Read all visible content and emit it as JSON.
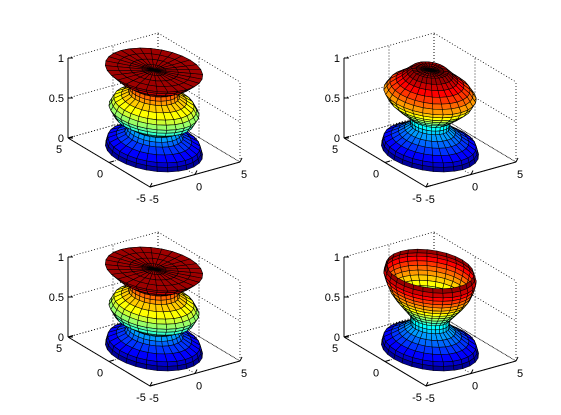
{
  "chart_data": [
    {
      "type": "surface",
      "colormap": "jet",
      "zlim": [
        0,
        1
      ],
      "xlim": [
        -5,
        5
      ],
      "ylim": [
        -5,
        5
      ],
      "z_ticks": [
        "0",
        "0.5",
        "1"
      ],
      "x_ticks": [
        "-5",
        "0",
        "5"
      ],
      "y_ticks": [
        "-5",
        "0",
        "5"
      ],
      "profile": {
        "z": [
          0,
          0.1,
          0.2,
          0.3,
          0.4,
          0.5,
          0.6,
          0.7,
          0.8,
          0.9,
          1.0
        ],
        "r": [
          4.0,
          3.8,
          2.4,
          2.1,
          3.3,
          3.7,
          3.3,
          2.1,
          2.0,
          3.2,
          4.0
        ]
      },
      "color_by": "z",
      "top_open": false
    },
    {
      "type": "surface",
      "colormap": "jet",
      "zlim": [
        0,
        1
      ],
      "xlim": [
        -5,
        5
      ],
      "ylim": [
        -5,
        5
      ],
      "z_ticks": [
        "0",
        "0.5",
        "1"
      ],
      "x_ticks": [
        "-5",
        "0",
        "5"
      ],
      "y_ticks": [
        "-5",
        "0",
        "5"
      ],
      "profile": {
        "z": [
          0,
          0.1,
          0.2,
          0.3,
          0.4,
          0.5,
          0.6,
          0.7,
          0.8,
          0.9,
          1.0
        ],
        "r": [
          4.0,
          3.8,
          2.6,
          1.6,
          1.7,
          2.6,
          3.4,
          3.8,
          3.3,
          2.3,
          1.5
        ]
      },
      "color_by": "z",
      "top_open": false
    },
    {
      "type": "surface",
      "colormap": "jet",
      "zlim": [
        0,
        1
      ],
      "xlim": [
        -5,
        5
      ],
      "ylim": [
        -5,
        5
      ],
      "z_ticks": [
        "0",
        "0.5",
        "1"
      ],
      "x_ticks": [
        "-5",
        "0",
        "5"
      ],
      "y_ticks": [
        "-5",
        "0",
        "5"
      ],
      "profile": {
        "z": [
          0,
          0.1,
          0.2,
          0.3,
          0.4,
          0.5,
          0.6,
          0.7,
          0.8,
          0.9,
          1.0
        ],
        "r": [
          4.0,
          3.8,
          2.4,
          2.1,
          3.3,
          3.7,
          3.3,
          2.1,
          2.0,
          3.2,
          4.0
        ]
      },
      "color_by": "z",
      "top_open": false
    },
    {
      "type": "surface",
      "colormap": "jet",
      "zlim": [
        0,
        1
      ],
      "xlim": [
        -5,
        5
      ],
      "ylim": [
        -5,
        5
      ],
      "z_ticks": [
        "0",
        "0.5",
        "1"
      ],
      "x_ticks": [
        "-5",
        "0",
        "5"
      ],
      "y_ticks": [
        "-5",
        "0",
        "5"
      ],
      "profile": {
        "z": [
          0,
          0.1,
          0.2,
          0.3,
          0.4,
          0.5,
          0.6,
          0.7,
          0.8,
          0.9,
          1.0
        ],
        "r": [
          4.0,
          3.8,
          2.6,
          1.6,
          1.6,
          2.2,
          2.8,
          3.3,
          3.6,
          3.8,
          3.6
        ]
      },
      "color_by": "z",
      "top_open": true
    }
  ]
}
